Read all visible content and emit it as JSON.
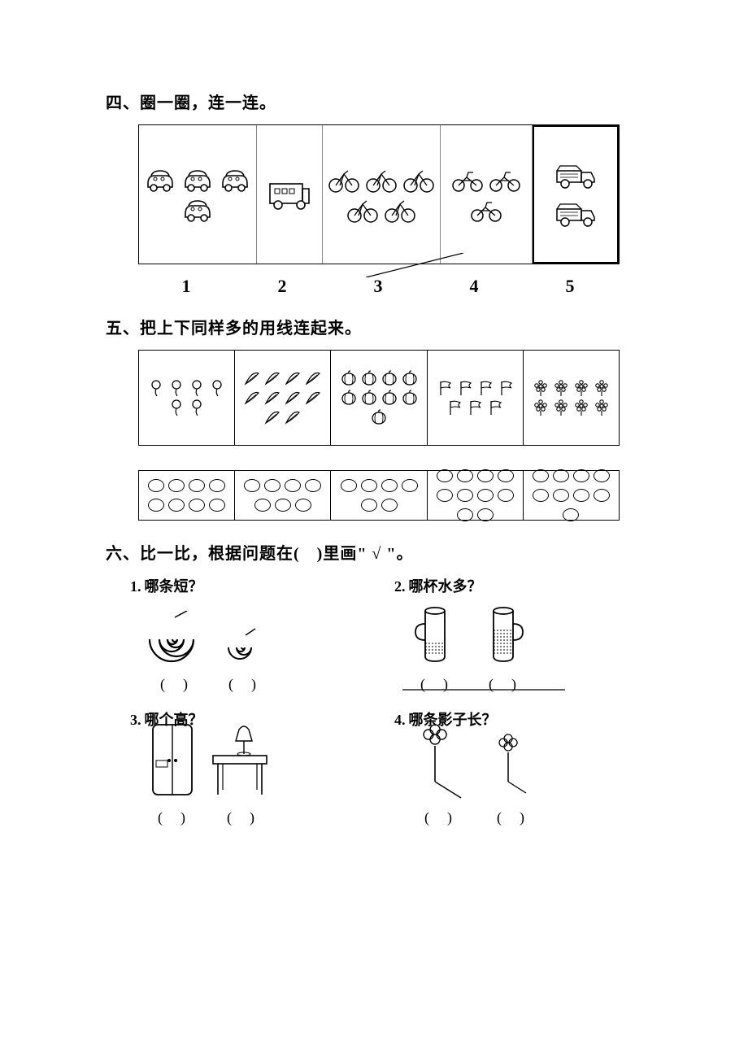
{
  "colors": {
    "ink": "#000000",
    "paper": "#ffffff",
    "faint": "#888888"
  },
  "typography": {
    "body_fontsize_pt": 15,
    "heading_fontsize_pt": 15,
    "number_fontsize_pt": 17
  },
  "section4": {
    "heading": "四、圈一圈，连一连。",
    "groups": [
      {
        "name": "cars",
        "count": 4,
        "icon": "car"
      },
      {
        "name": "ambulance",
        "count": 1,
        "icon": "ambulance"
      },
      {
        "name": "bicycles",
        "count": 5,
        "icon": "bicycle"
      },
      {
        "name": "motorcycles",
        "count": 3,
        "icon": "motorcycle"
      },
      {
        "name": "trucks",
        "count": 2,
        "icon": "truck"
      }
    ],
    "numbers": [
      "1",
      "2",
      "3",
      "4",
      "5"
    ]
  },
  "section5": {
    "heading": "五、把上下同样多的用线连起来。",
    "top_row": [
      {
        "icon": "balloon",
        "count": 6
      },
      {
        "icon": "feather",
        "count": 10
      },
      {
        "icon": "pumpkin",
        "count": 9
      },
      {
        "icon": "flag",
        "count": 7
      },
      {
        "icon": "flower",
        "count": 8
      }
    ],
    "bottom_row": [
      {
        "icon": "oval",
        "count": 8
      },
      {
        "icon": "oval",
        "count": 7
      },
      {
        "icon": "oval",
        "count": 6
      },
      {
        "icon": "oval",
        "count": 10
      },
      {
        "icon": "oval",
        "count": 9
      }
    ]
  },
  "section6": {
    "heading": "六、比一比，根据问题在(　)里画\" √ \"。",
    "questions": [
      {
        "num": "1.",
        "text": "哪条短？",
        "options": 2,
        "drawing": "spirals"
      },
      {
        "num": "2.",
        "text": "哪杯水多？",
        "options": 2,
        "drawing": "cups"
      },
      {
        "num": "3.",
        "text": "哪个高？",
        "options": 2,
        "drawing": "furniture"
      },
      {
        "num": "4.",
        "text": "哪条影子长？",
        "options": 2,
        "drawing": "shadows"
      }
    ],
    "paren": "(　)"
  }
}
